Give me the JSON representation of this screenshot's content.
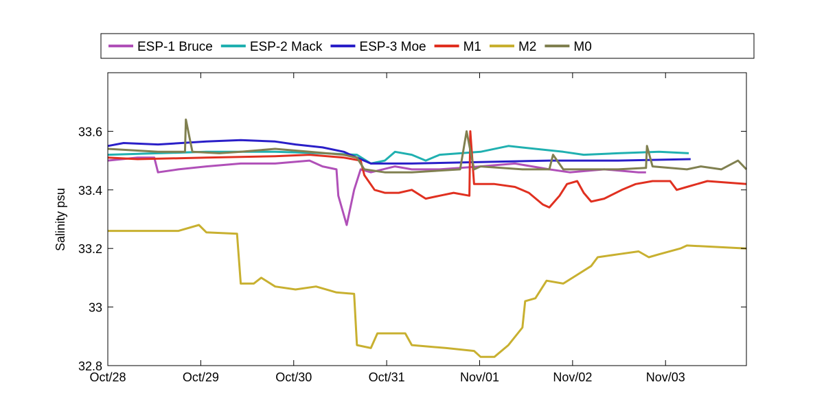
{
  "chart_data": {
    "type": "line",
    "title": "",
    "xlabel": "",
    "ylabel": "Salinity psu",
    "x_units": "days since Oct/28",
    "xlim": [
      0,
      6.87
    ],
    "ylim": [
      32.8,
      33.8
    ],
    "x_ticks": [
      0,
      1,
      2,
      3,
      4,
      5,
      6
    ],
    "x_tick_labels": [
      "Oct/28",
      "Oct/29",
      "Oct/30",
      "Oct/31",
      "Nov/01",
      "Nov/02",
      "Nov/03"
    ],
    "y_ticks": [
      32.8,
      33,
      33.2,
      33.4,
      33.6
    ],
    "y_tick_labels": [
      "32.8",
      "33",
      "33.2",
      "33.4",
      "33.6"
    ],
    "grid": false,
    "legend_position": "top-outside",
    "series": [
      {
        "name": "ESP-1 Bruce",
        "color": "#b050b8",
        "x": [
          0,
          0.32,
          0.5,
          0.54,
          0.76,
          1.06,
          1.43,
          1.8,
          2.17,
          2.31,
          2.46,
          2.48,
          2.57,
          2.65,
          2.72,
          2.83,
          3.09,
          3.27,
          3.57,
          4.01,
          4.38,
          4.75,
          4.97,
          5.34,
          5.71,
          5.79
        ],
        "y": [
          33.5,
          33.51,
          33.51,
          33.46,
          33.47,
          33.48,
          33.49,
          33.49,
          33.5,
          33.48,
          33.47,
          33.38,
          33.28,
          33.4,
          33.47,
          33.46,
          33.48,
          33.47,
          33.47,
          33.48,
          33.49,
          33.47,
          33.46,
          33.47,
          33.46,
          33.46
        ]
      },
      {
        "name": "ESP-2 Mack",
        "color": "#20b0b0",
        "x": [
          0,
          0.54,
          1.06,
          1.8,
          2.31,
          2.68,
          2.83,
          2.98,
          3.09,
          3.27,
          3.42,
          3.57,
          4.01,
          4.31,
          4.6,
          4.9,
          5.12,
          5.49,
          5.93,
          6.25
        ],
        "y": [
          33.52,
          33.525,
          33.53,
          33.53,
          33.525,
          33.52,
          33.49,
          33.5,
          33.53,
          33.52,
          33.5,
          33.52,
          33.53,
          33.55,
          33.54,
          33.53,
          33.52,
          33.525,
          33.53,
          33.525
        ]
      },
      {
        "name": "ESP-3 Moe",
        "color": "#2a1fc8",
        "x": [
          0,
          0.17,
          0.54,
          1.06,
          1.43,
          1.8,
          2.02,
          2.31,
          2.54,
          2.68,
          2.83,
          3.27,
          4.01,
          4.75,
          5.49,
          6.27
        ],
        "y": [
          33.55,
          33.56,
          33.555,
          33.565,
          33.57,
          33.565,
          33.555,
          33.545,
          33.53,
          33.51,
          33.49,
          33.49,
          33.495,
          33.5,
          33.5,
          33.505
        ]
      },
      {
        "name": "M1",
        "color": "#e03020",
        "x": [
          0,
          0.32,
          1.06,
          1.8,
          2.17,
          2.54,
          2.72,
          2.76,
          2.87,
          2.98,
          3.13,
          3.27,
          3.42,
          3.57,
          3.72,
          3.89,
          3.9,
          3.94,
          4.16,
          4.38,
          4.53,
          4.68,
          4.75,
          4.86,
          4.94,
          5.05,
          5.12,
          5.2,
          5.34,
          5.53,
          5.68,
          5.86,
          6.05,
          6.12,
          6.23,
          6.45,
          6.87
        ],
        "y": [
          33.51,
          33.505,
          33.51,
          33.515,
          33.52,
          33.51,
          33.5,
          33.45,
          33.4,
          33.39,
          33.39,
          33.4,
          33.37,
          33.38,
          33.39,
          33.38,
          33.6,
          33.42,
          33.42,
          33.41,
          33.39,
          33.35,
          33.34,
          33.38,
          33.42,
          33.43,
          33.39,
          33.36,
          33.37,
          33.4,
          33.42,
          33.43,
          33.43,
          33.4,
          33.41,
          33.43,
          33.42
        ]
      },
      {
        "name": "M2",
        "color": "#c8b030",
        "x": [
          0,
          0.76,
          0.98,
          1.06,
          1.39,
          1.43,
          1.57,
          1.65,
          1.8,
          2.02,
          2.24,
          2.46,
          2.65,
          2.68,
          2.83,
          2.9,
          3.2,
          3.27,
          3.64,
          3.94,
          4.01,
          4.16,
          4.31,
          4.46,
          4.49,
          4.6,
          4.72,
          4.9,
          5.05,
          5.2,
          5.27,
          5.49,
          5.71,
          5.82,
          5.93,
          6.16,
          6.23,
          6.87
        ],
        "y": [
          33.26,
          33.26,
          33.28,
          33.255,
          33.25,
          33.08,
          33.08,
          33.1,
          33.07,
          33.06,
          33.07,
          33.05,
          33.045,
          32.87,
          32.86,
          32.91,
          32.91,
          32.87,
          32.86,
          32.85,
          32.83,
          32.83,
          32.87,
          32.93,
          33.02,
          33.03,
          33.09,
          33.08,
          33.11,
          33.14,
          33.17,
          33.18,
          33.19,
          33.17,
          33.18,
          33.2,
          33.21,
          33.2
        ]
      },
      {
        "name": "M0",
        "color": "#808050",
        "x": [
          0,
          0.54,
          0.83,
          0.84,
          0.91,
          1.2,
          1.43,
          1.8,
          2.17,
          2.54,
          2.68,
          2.76,
          2.98,
          3.27,
          3.79,
          3.86,
          3.94,
          4.01,
          4.46,
          4.75,
          4.79,
          4.9,
          5.49,
          5.79,
          5.8,
          5.86,
          6.23,
          6.38,
          6.6,
          6.78,
          6.87
        ],
        "y": [
          33.54,
          33.53,
          33.53,
          33.64,
          33.53,
          33.525,
          33.53,
          33.54,
          33.53,
          33.52,
          33.51,
          33.47,
          33.46,
          33.46,
          33.47,
          33.6,
          33.47,
          33.48,
          33.47,
          33.47,
          33.52,
          33.47,
          33.47,
          33.475,
          33.55,
          33.48,
          33.47,
          33.48,
          33.47,
          33.5,
          33.47
        ]
      }
    ]
  }
}
